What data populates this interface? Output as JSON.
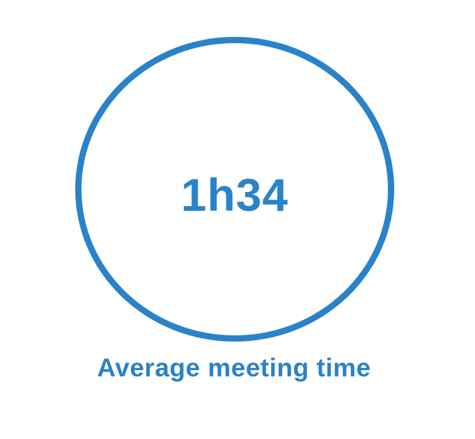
{
  "stat": {
    "value": "1h34",
    "label": "Average meeting time"
  },
  "colors": {
    "accent": "#2a82c9",
    "background": "#ffffff"
  }
}
